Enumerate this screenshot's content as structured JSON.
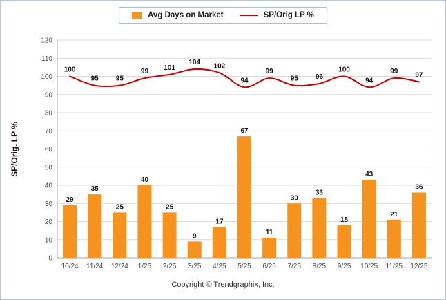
{
  "legend": {
    "bar_label": "Avg Days on Market",
    "line_label": "SP/Orig LP %"
  },
  "footer": "Copyright © Trendgraphix, Inc.",
  "colors": {
    "bar": "#f6921e",
    "line": "#cc0000",
    "grid": "#d9d9d9",
    "axis": "#a6a6a6",
    "frame_border": "#b5c7de"
  },
  "chart_data": {
    "type": "bar+line",
    "categories": [
      "10/24",
      "11/24",
      "12/24",
      "1/25",
      "2/25",
      "3/25",
      "4/25",
      "5/25",
      "6/25",
      "7/25",
      "8/25",
      "9/25",
      "10/25",
      "11/25",
      "12/25"
    ],
    "series": [
      {
        "name": "Avg Days on Market",
        "type": "bar",
        "color": "#f6921e",
        "values": [
          29,
          35,
          25,
          40,
          25,
          9,
          17,
          67,
          11,
          30,
          33,
          18,
          43,
          21,
          36
        ]
      },
      {
        "name": "SP/Orig LP %",
        "type": "line",
        "color": "#cc0000",
        "values": [
          100,
          95,
          95,
          99,
          101,
          104,
          102,
          94,
          99,
          95,
          96,
          100,
          94,
          99,
          97
        ]
      }
    ],
    "ylabel": "SP/Orig. LP %",
    "ylim": [
      0,
      120
    ],
    "ytick_step": 10,
    "grid": true,
    "legend_position": "top-center"
  }
}
